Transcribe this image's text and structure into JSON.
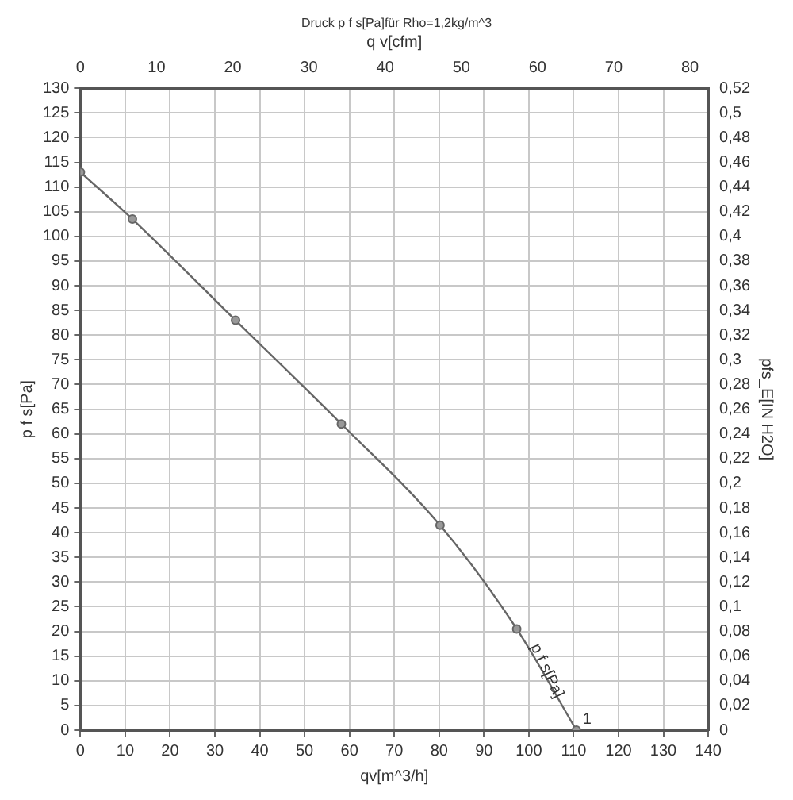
{
  "chart_data": {
    "type": "line",
    "title": "Druck p f s[Pa]für Rho=1,2kg/m^3",
    "xlabel": "qv[m^3/h]",
    "ylabel": "p f s[Pa]",
    "x2label": "q v[cfm]",
    "y2label": "pfs_E[IN H2O]",
    "series": [
      {
        "color": "#666666",
        "x": [
          0,
          11.6,
          34.6,
          58.2,
          80.2,
          97.3,
          110.6
        ],
        "values": [
          113,
          103.5,
          83,
          62,
          41.5,
          20.5,
          0
        ]
      }
    ],
    "xlim": [
      0,
      140
    ],
    "xticks": [
      0,
      10,
      20,
      30,
      40,
      50,
      60,
      70,
      80,
      90,
      100,
      110,
      120,
      130,
      140
    ],
    "ylim": [
      0,
      130
    ],
    "yticks": [
      0,
      5,
      10,
      15,
      20,
      25,
      30,
      35,
      40,
      45,
      50,
      55,
      60,
      65,
      70,
      75,
      80,
      85,
      90,
      95,
      100,
      105,
      110,
      115,
      120,
      125,
      130
    ],
    "x2lim": [
      0,
      82.4
    ],
    "x2ticks": [
      0,
      10,
      20,
      30,
      40,
      50,
      60,
      70,
      80
    ],
    "y2lim": [
      0,
      0.52
    ],
    "y2ticks": [
      {
        "value": 0,
        "label": "0"
      },
      {
        "value": 0.02,
        "label": "0,02"
      },
      {
        "value": 0.04,
        "label": "0,04"
      },
      {
        "value": 0.06,
        "label": "0,06"
      },
      {
        "value": 0.08,
        "label": "0,08"
      },
      {
        "value": 0.1,
        "label": "0,1"
      },
      {
        "value": 0.12,
        "label": "0,12"
      },
      {
        "value": 0.14,
        "label": "0,14"
      },
      {
        "value": 0.16,
        "label": "0,16"
      },
      {
        "value": 0.18,
        "label": "0,18"
      },
      {
        "value": 0.2,
        "label": "0,2"
      },
      {
        "value": 0.22,
        "label": "0,22"
      },
      {
        "value": 0.24,
        "label": "0,24"
      },
      {
        "value": 0.26,
        "label": "0,26"
      },
      {
        "value": 0.28,
        "label": "0,28"
      },
      {
        "value": 0.3,
        "label": "0,3"
      },
      {
        "value": 0.32,
        "label": "0,32"
      },
      {
        "value": 0.34,
        "label": "0,34"
      },
      {
        "value": 0.36,
        "label": "0,36"
      },
      {
        "value": 0.38,
        "label": "0,38"
      },
      {
        "value": 0.4,
        "label": "0,4"
      },
      {
        "value": 0.42,
        "label": "0,42"
      },
      {
        "value": 0.44,
        "label": "0,44"
      },
      {
        "value": 0.46,
        "label": "0,46"
      },
      {
        "value": 0.48,
        "label": "0,48"
      },
      {
        "value": 0.5,
        "label": "0,5"
      },
      {
        "value": 0.52,
        "label": "0,52"
      }
    ],
    "annotations": [
      {
        "text": "p f s[Pa]",
        "x": 104,
        "y": 12
      },
      {
        "text": "1",
        "x": 110.6,
        "y": 0
      }
    ],
    "grid": true,
    "legend": false,
    "marker": "circle",
    "line_style": "solid"
  }
}
